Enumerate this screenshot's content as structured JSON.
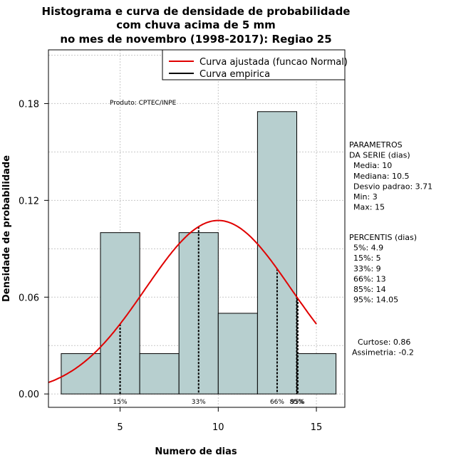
{
  "chart_data": {
    "type": "bar",
    "title_lines": [
      "Histograma e curva de densidade de probabilidade",
      "com chuva acima de 5 mm",
      "no mes de novembro (1998-2017): Regiao 25"
    ],
    "xlabel": "Numero de dias",
    "ylabel": "Densidade de probabilidade",
    "xlim": [
      1.35,
      16.45
    ],
    "ylim": [
      -0.0083,
      0.2133
    ],
    "x_ticks": [
      5,
      10,
      15
    ],
    "y_ticks": [
      0.0,
      0.06,
      0.12,
      0.18
    ],
    "y_tick_labels": [
      "0.00",
      "0.06",
      "0.12",
      "0.18"
    ],
    "bins": [
      {
        "from": 2,
        "to": 4,
        "density": 0.025
      },
      {
        "from": 4,
        "to": 6,
        "density": 0.1
      },
      {
        "from": 6,
        "to": 8,
        "density": 0.025
      },
      {
        "from": 8,
        "to": 10,
        "density": 0.1
      },
      {
        "from": 10,
        "to": 12,
        "density": 0.05
      },
      {
        "from": 12,
        "to": 14,
        "density": 0.175
      },
      {
        "from": 14,
        "to": 16,
        "density": 0.025
      }
    ],
    "bar_color": "#b7cfcf",
    "curve_color": "#e00000",
    "normal_fit": {
      "mean": 10,
      "sd": 3.71,
      "from": 1.35,
      "to": 15
    },
    "percentile_lines": [
      {
        "x": 5,
        "label": "15%"
      },
      {
        "x": 9,
        "label": "33%"
      },
      {
        "x": 13,
        "label": "66%"
      },
      {
        "x": 14,
        "label": "85%"
      },
      {
        "x": 14.05,
        "label": "95%"
      }
    ],
    "legend": [
      "Curva ajustada (funcao Normal)",
      "Curva empirica"
    ],
    "product_label": "Produto: CPTEC/INPE",
    "parametros": [
      "PARAMETROS",
      "DA SERIE (dias)",
      "Media: 10",
      "Mediana: 10.5",
      "Desvio padrao: 3.71",
      "Min: 3",
      "Max: 15"
    ],
    "percentis": [
      "PERCENTIS (dias)",
      "5%: 4.9",
      "15%: 5",
      "33%: 9",
      "66%: 13",
      "85%: 14",
      "95%: 14.05"
    ],
    "shape_stats": [
      "Curtose: 0.86",
      "Assimetria: -0.2"
    ]
  }
}
